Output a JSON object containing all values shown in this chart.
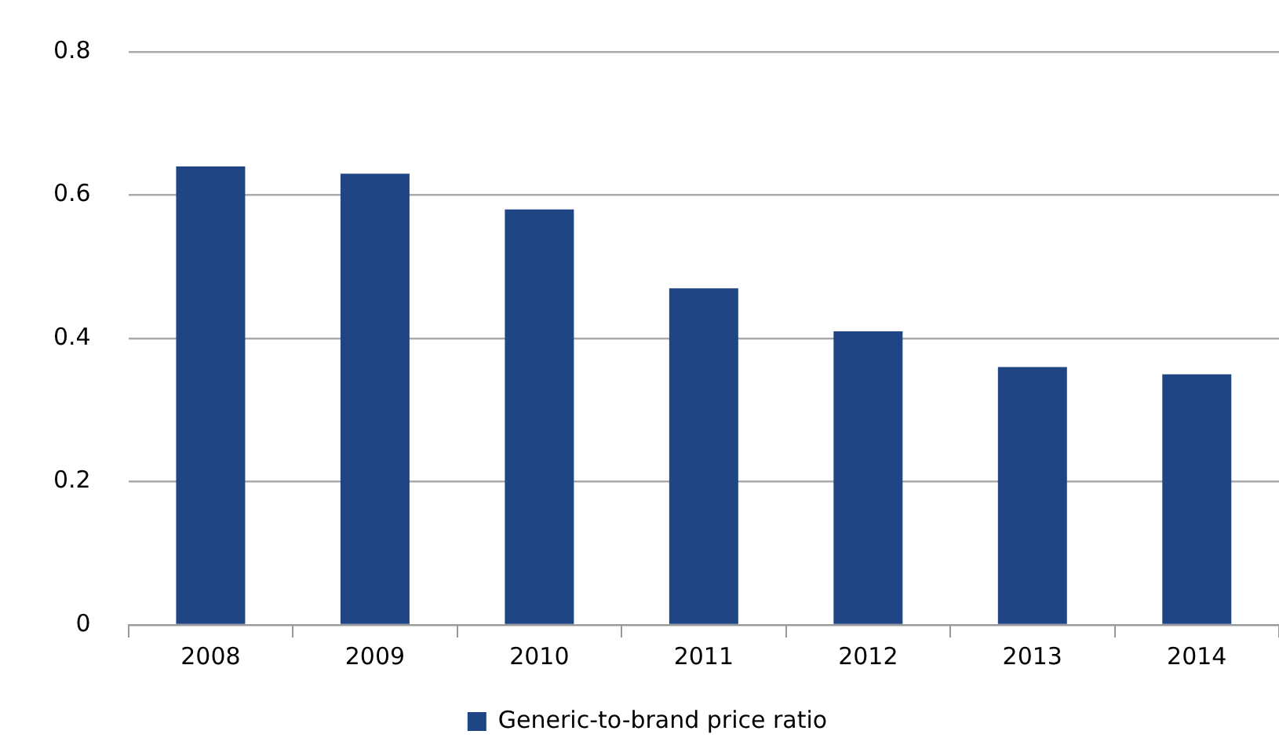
{
  "chart_data": {
    "type": "bar",
    "categories": [
      "2008",
      "2009",
      "2010",
      "2011",
      "2012",
      "2013",
      "2014"
    ],
    "series": [
      {
        "name": "Generic-to-brand price ratio",
        "color": "#1f4584",
        "values": [
          0.64,
          0.63,
          0.58,
          0.47,
          0.41,
          0.36,
          0.35
        ]
      }
    ],
    "ylim": [
      0,
      0.8
    ],
    "yticks": [
      0,
      0.2,
      0.4,
      0.6,
      0.8
    ],
    "grid": "y",
    "legend": "bottom"
  }
}
